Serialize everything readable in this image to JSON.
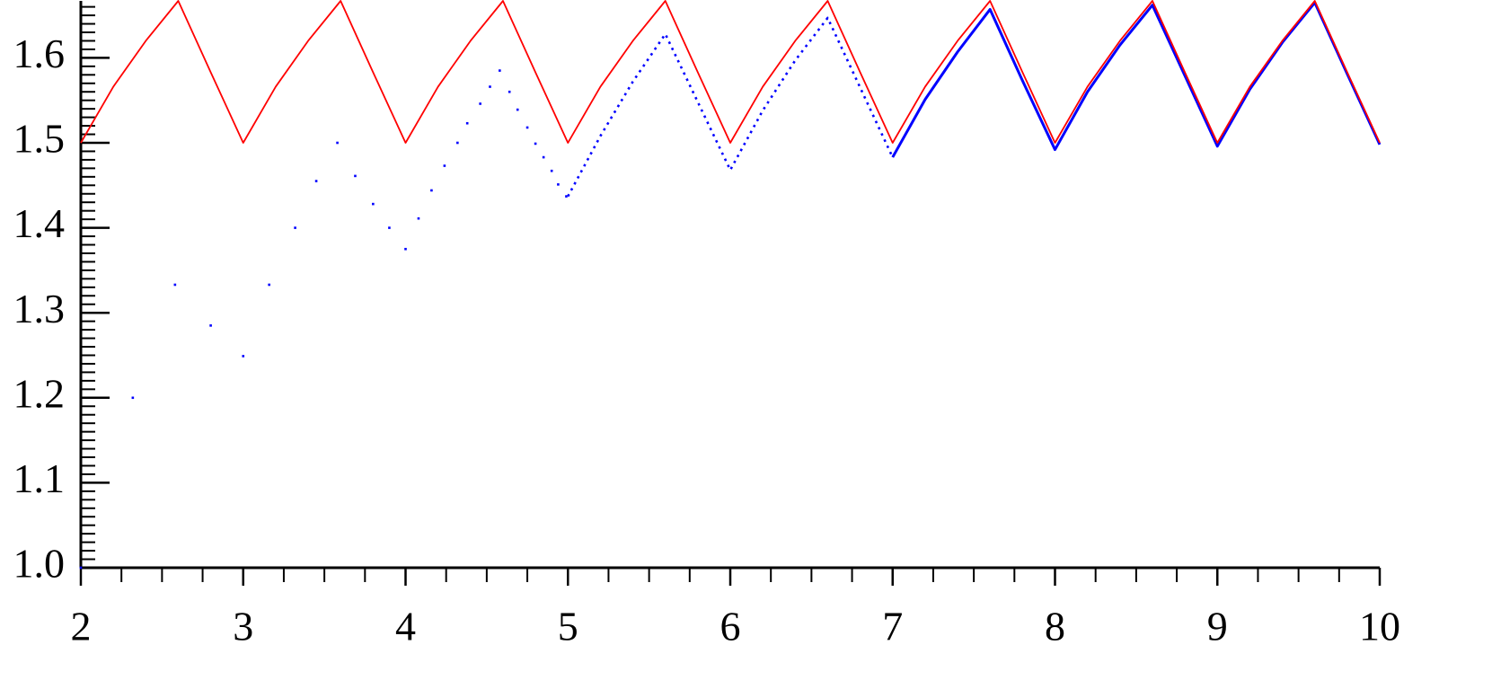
{
  "chart_data": {
    "type": "line",
    "xlim": [
      2,
      10
    ],
    "ylim": [
      1.0,
      1.667
    ],
    "xticks": [
      2,
      3,
      4,
      5,
      6,
      7,
      8,
      9,
      10
    ],
    "xticks_minor": [
      2.25,
      2.5,
      2.75,
      3.25,
      3.5,
      3.75,
      4.25,
      4.5,
      4.75,
      5.25,
      5.5,
      5.75,
      6.25,
      6.5,
      6.75,
      7.25,
      7.5,
      7.75,
      8.25,
      8.5,
      8.75,
      9.25,
      9.5,
      9.75
    ],
    "yticks": [
      {
        "value": 1.0,
        "label": "1.0"
      },
      1.1,
      1.2,
      1.3,
      1.4,
      1.5,
      1.6
    ],
    "yticks_minor": [
      1.01,
      1.02,
      1.03,
      1.04,
      1.05,
      1.06,
      1.07,
      1.08,
      1.09,
      1.11,
      1.12,
      1.13,
      1.14,
      1.15,
      1.16,
      1.17,
      1.18,
      1.19,
      1.21,
      1.22,
      1.23,
      1.24,
      1.25,
      1.26,
      1.27,
      1.28,
      1.29,
      1.31,
      1.32,
      1.33,
      1.34,
      1.35,
      1.36,
      1.37,
      1.38,
      1.39,
      1.41,
      1.42,
      1.43,
      1.44,
      1.45,
      1.46,
      1.47,
      1.48,
      1.49,
      1.51,
      1.52,
      1.53,
      1.54,
      1.55,
      1.56,
      1.57,
      1.58,
      1.59,
      1.61,
      1.62,
      1.63,
      1.64,
      1.65,
      1.66
    ],
    "series": [
      {
        "color": "#0000ff",
        "style": "dots",
        "x": [
          2,
          2.32,
          2.58,
          2.8,
          3,
          3.16,
          3.32,
          3.45,
          3.58,
          3.69,
          3.8,
          3.9,
          4,
          4.08,
          4.16,
          4.24,
          4.32,
          4.38,
          4.46,
          4.52,
          4.58,
          4.64,
          4.69,
          4.75,
          4.8,
          4.85,
          4.9,
          4.94,
          4.99
        ],
        "values": [
          1.0,
          1.2,
          1.333,
          1.285,
          1.249,
          1.333,
          1.4,
          1.455,
          1.5,
          1.461,
          1.428,
          1.4,
          1.375,
          1.411,
          1.444,
          1.473,
          1.5,
          1.523,
          1.546,
          1.566,
          1.585,
          1.56,
          1.539,
          1.518,
          1.499,
          1.483,
          1.467,
          1.451,
          1.437
        ]
      },
      {
        "color": "#0000ff",
        "style": "dotted",
        "x": [
          5,
          5.2,
          5.4,
          5.6,
          5.8,
          6,
          6.2,
          6.4,
          6.6,
          6.8,
          7
        ],
        "values": [
          1.437,
          1.508,
          1.572,
          1.628,
          1.548,
          1.468,
          1.538,
          1.597,
          1.647,
          1.565,
          1.483
        ]
      },
      {
        "color": "#0000ff",
        "style": "solid",
        "x": [
          7,
          7.2,
          7.4,
          7.6,
          7.8,
          8,
          8.2,
          8.4,
          8.6,
          8.8,
          9,
          9.2,
          9.4,
          9.6,
          9.8,
          10
        ],
        "values": [
          1.483,
          1.551,
          1.607,
          1.657,
          1.573,
          1.492,
          1.56,
          1.615,
          1.662,
          1.579,
          1.496,
          1.563,
          1.618,
          1.665,
          1.581,
          1.498
        ]
      },
      {
        "color": "#ff0000",
        "style": "thin",
        "x": [
          2,
          2.2,
          2.4,
          2.6,
          2.8,
          3,
          3.2,
          3.4,
          3.6,
          3.8,
          4,
          4.2,
          4.4,
          4.6,
          4.8,
          5,
          5.2,
          5.4,
          5.6,
          5.8,
          6,
          6.2,
          6.4,
          6.6,
          6.8,
          7,
          7.2,
          7.4,
          7.6,
          7.8,
          8,
          8.2,
          8.4,
          8.6,
          8.8,
          9,
          9.2,
          9.4,
          9.6,
          9.8,
          10
        ],
        "values": [
          1.5,
          1.566,
          1.62,
          1.667,
          1.583,
          1.5,
          1.566,
          1.62,
          1.667,
          1.583,
          1.5,
          1.566,
          1.62,
          1.667,
          1.583,
          1.5,
          1.566,
          1.62,
          1.667,
          1.583,
          1.5,
          1.566,
          1.62,
          1.667,
          1.583,
          1.5,
          1.566,
          1.62,
          1.667,
          1.583,
          1.5,
          1.566,
          1.62,
          1.667,
          1.583,
          1.5,
          1.566,
          1.62,
          1.667,
          1.583,
          1.5
        ]
      }
    ]
  }
}
